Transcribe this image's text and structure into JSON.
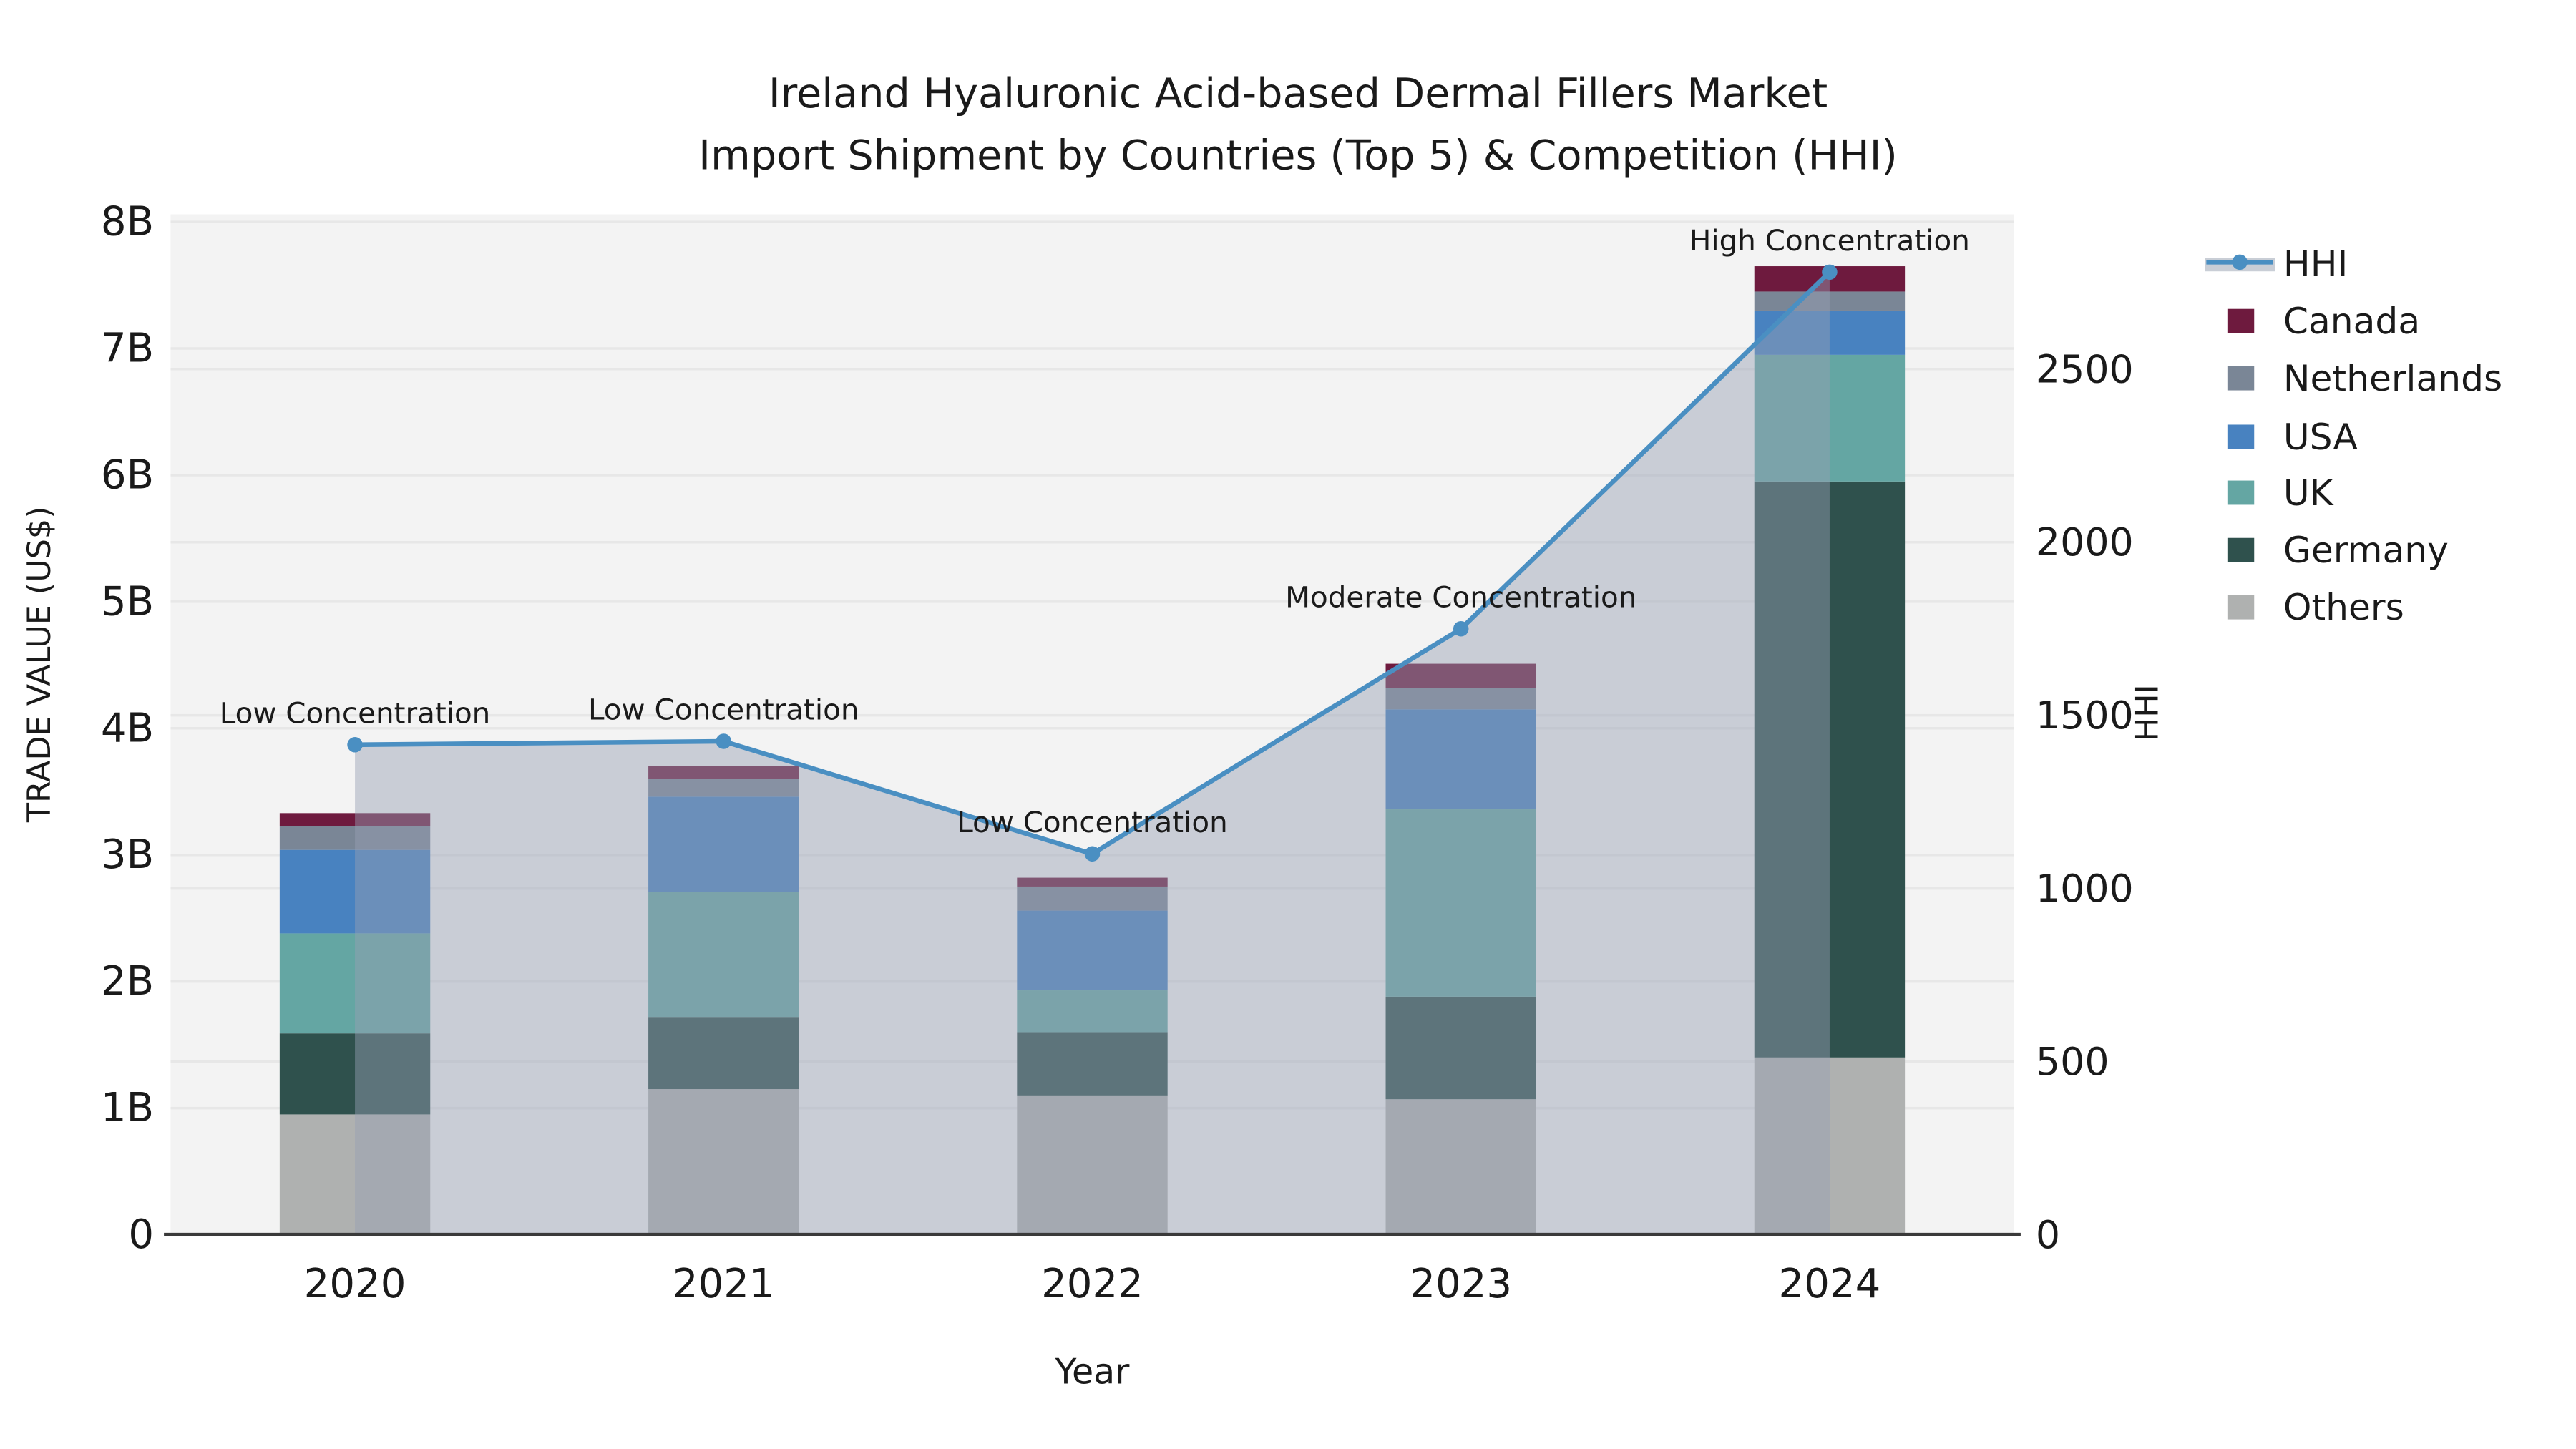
{
  "chart_data": {
    "type": "stacked-bar+line",
    "title_lines": [
      "Ireland Hyaluronic Acid-based Dermal Fillers Market",
      "Import Shipment by Countries (Top 5) & Competition (HHI)"
    ],
    "xlabel": "Year",
    "ylabel_left": "TRADE VALUE (US$)",
    "ylabel_right": "HHI",
    "categories": [
      "2020",
      "2021",
      "2022",
      "2023",
      "2024"
    ],
    "value_unit": "billion US$",
    "stack_series": [
      {
        "name": "Others",
        "color": "#AFB1B0",
        "values": [
          0.95,
          1.15,
          1.1,
          1.07,
          1.4
        ]
      },
      {
        "name": "Germany",
        "color": "#2F514D",
        "values": [
          0.64,
          0.57,
          0.5,
          0.81,
          4.55
        ]
      },
      {
        "name": "UK",
        "color": "#64A6A3",
        "values": [
          0.79,
          0.99,
          0.33,
          1.48,
          1.0
        ]
      },
      {
        "name": "USA",
        "color": "#4882C0",
        "values": [
          0.66,
          0.75,
          0.63,
          0.79,
          0.35
        ]
      },
      {
        "name": "Netherlands",
        "color": "#7A8696",
        "values": [
          0.19,
          0.14,
          0.19,
          0.17,
          0.15
        ]
      },
      {
        "name": "Canada",
        "color": "#6E1A3E",
        "values": [
          0.1,
          0.1,
          0.07,
          0.19,
          0.2
        ]
      }
    ],
    "bar_totals": [
      3.33,
      3.7,
      2.82,
      4.51,
      7.65
    ],
    "hhi": {
      "name": "HHI",
      "line_color": "#4A8FC2",
      "area_color": "rgba(150,160,180,0.45)",
      "legend_band_color": "#C9CED6",
      "values": [
        1415,
        1425,
        1100,
        1750,
        2780
      ],
      "annotations": [
        "Low Concentration",
        "Low Concentration",
        "Low Concentration",
        "Moderate Concentration",
        "High Concentration"
      ]
    },
    "y_left": {
      "tick_labels": [
        "0",
        "1B",
        "2B",
        "3B",
        "4B",
        "5B",
        "6B",
        "7B",
        "8B"
      ],
      "tick_values": [
        0,
        1,
        2,
        3,
        4,
        5,
        6,
        7,
        8
      ],
      "axis_max": 8.06
    },
    "y_right": {
      "tick_labels": [
        "0",
        "500",
        "1000",
        "1500",
        "2000",
        "2500"
      ],
      "tick_values": [
        0,
        500,
        1000,
        1500,
        2000,
        2500
      ],
      "axis_max": 2947
    },
    "legend": [
      {
        "label": "HHI",
        "type": "line"
      },
      {
        "label": "Canada",
        "type": "patch",
        "color": "#6E1A3E"
      },
      {
        "label": "Netherlands",
        "type": "patch",
        "color": "#7A8696"
      },
      {
        "label": "USA",
        "type": "patch",
        "color": "#4882C0"
      },
      {
        "label": "UK",
        "type": "patch",
        "color": "#64A6A3"
      },
      {
        "label": "Germany",
        "type": "patch",
        "color": "#2F514D"
      },
      {
        "label": "Others",
        "type": "patch",
        "color": "#AFB1B0"
      }
    ],
    "styles": {
      "plot_bg": "#F3F3F3",
      "grid": "#E7E7E7",
      "spine": "#3A3A3A",
      "text": "#1a1a1a"
    }
  }
}
